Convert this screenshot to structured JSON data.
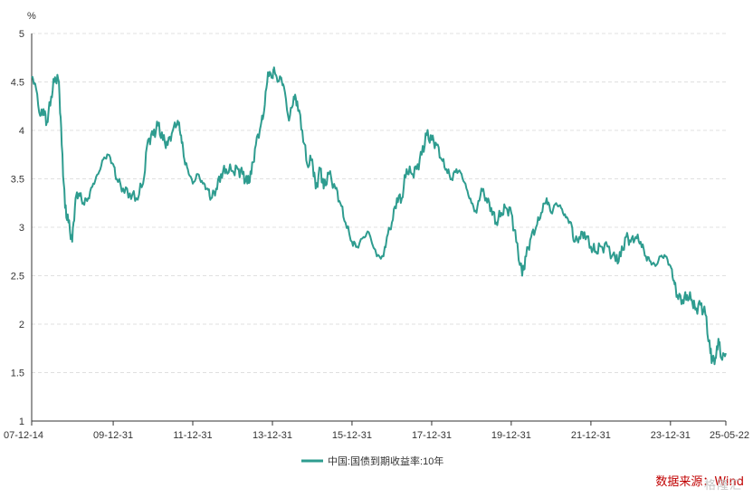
{
  "chart_data": {
    "type": "line",
    "title": "",
    "ylabel": "%",
    "ylim": [
      1,
      5
    ],
    "yticks": [
      "1",
      "1.5",
      "2",
      "2.5",
      "3",
      "3.5",
      "4",
      "4.5",
      "5"
    ],
    "xticks": [
      "07-12-14",
      "09-12-31",
      "11-12-31",
      "13-12-31",
      "15-12-31",
      "17-12-31",
      "19-12-31",
      "21-12-31",
      "23-12-31",
      "25-05-22"
    ],
    "grid": true,
    "legend_position": "bottom-center",
    "series": [
      {
        "name": "中国:国债到期收益率:10年",
        "color": "#2e9c8f",
        "points": [
          [
            "2007-12-14",
            4.55
          ],
          [
            "2008-01-15",
            4.48
          ],
          [
            "2008-03-01",
            4.15
          ],
          [
            "2008-04-01",
            4.22
          ],
          [
            "2008-05-01",
            4.08
          ],
          [
            "2008-06-10",
            4.35
          ],
          [
            "2008-07-15",
            4.55
          ],
          [
            "2008-08-20",
            4.5
          ],
          [
            "2008-09-15",
            3.85
          ],
          [
            "2008-10-15",
            3.2
          ],
          [
            "2008-11-15",
            3.05
          ],
          [
            "2008-12-20",
            2.85
          ],
          [
            "2009-01-20",
            3.3
          ],
          [
            "2009-02-20",
            3.35
          ],
          [
            "2009-04-01",
            3.25
          ],
          [
            "2009-05-15",
            3.3
          ],
          [
            "2009-07-01",
            3.45
          ],
          [
            "2009-08-15",
            3.55
          ],
          [
            "2009-10-01",
            3.7
          ],
          [
            "2009-11-15",
            3.75
          ],
          [
            "2009-12-31",
            3.65
          ],
          [
            "2010-02-01",
            3.5
          ],
          [
            "2010-04-01",
            3.4
          ],
          [
            "2010-06-01",
            3.35
          ],
          [
            "2010-08-01",
            3.3
          ],
          [
            "2010-10-01",
            3.45
          ],
          [
            "2010-11-15",
            3.9
          ],
          [
            "2011-01-01",
            3.95
          ],
          [
            "2011-02-15",
            4.05
          ],
          [
            "2011-04-01",
            3.9
          ],
          [
            "2011-05-15",
            3.85
          ],
          [
            "2011-07-01",
            4.0
          ],
          [
            "2011-08-15",
            4.1
          ],
          [
            "2011-09-15",
            3.95
          ],
          [
            "2011-10-15",
            3.7
          ],
          [
            "2011-11-15",
            3.6
          ],
          [
            "2011-12-31",
            3.45
          ],
          [
            "2012-02-15",
            3.55
          ],
          [
            "2012-04-01",
            3.45
          ],
          [
            "2012-05-15",
            3.4
          ],
          [
            "2012-06-15",
            3.3
          ],
          [
            "2012-08-01",
            3.4
          ],
          [
            "2012-09-15",
            3.55
          ],
          [
            "2012-11-01",
            3.6
          ],
          [
            "2012-12-31",
            3.58
          ],
          [
            "2013-02-15",
            3.6
          ],
          [
            "2013-04-01",
            3.55
          ],
          [
            "2013-05-15",
            3.45
          ],
          [
            "2013-06-20",
            3.55
          ],
          [
            "2013-08-01",
            3.85
          ],
          [
            "2013-09-15",
            4.05
          ],
          [
            "2013-10-15",
            4.2
          ],
          [
            "2013-11-20",
            4.6
          ],
          [
            "2013-12-31",
            4.55
          ],
          [
            "2014-01-15",
            4.65
          ],
          [
            "2014-02-15",
            4.5
          ],
          [
            "2014-03-15",
            4.55
          ],
          [
            "2014-04-15",
            4.45
          ],
          [
            "2014-06-01",
            4.1
          ],
          [
            "2014-07-15",
            4.35
          ],
          [
            "2014-08-15",
            4.3
          ],
          [
            "2014-10-01",
            4.0
          ],
          [
            "2014-11-15",
            3.65
          ],
          [
            "2014-12-31",
            3.7
          ],
          [
            "2015-02-01",
            3.4
          ],
          [
            "2015-03-15",
            3.6
          ],
          [
            "2015-04-15",
            3.4
          ],
          [
            "2015-06-01",
            3.55
          ],
          [
            "2015-08-01",
            3.4
          ],
          [
            "2015-09-15",
            3.25
          ],
          [
            "2015-11-01",
            3.05
          ],
          [
            "2015-12-31",
            2.85
          ],
          [
            "2016-02-15",
            2.8
          ],
          [
            "2016-04-15",
            2.9
          ],
          [
            "2016-06-01",
            2.95
          ],
          [
            "2016-08-15",
            2.7
          ],
          [
            "2016-10-15",
            2.7
          ],
          [
            "2016-11-15",
            2.9
          ],
          [
            "2016-12-31",
            3.05
          ],
          [
            "2017-02-15",
            3.3
          ],
          [
            "2017-04-01",
            3.3
          ],
          [
            "2017-05-15",
            3.6
          ],
          [
            "2017-07-01",
            3.55
          ],
          [
            "2017-08-15",
            3.6
          ],
          [
            "2017-10-01",
            3.75
          ],
          [
            "2017-11-15",
            3.95
          ],
          [
            "2017-12-31",
            3.9
          ],
          [
            "2018-02-15",
            3.85
          ],
          [
            "2018-04-01",
            3.7
          ],
          [
            "2018-05-15",
            3.6
          ],
          [
            "2018-07-01",
            3.5
          ],
          [
            "2018-08-15",
            3.6
          ],
          [
            "2018-10-01",
            3.55
          ],
          [
            "2018-11-15",
            3.4
          ],
          [
            "2018-12-31",
            3.25
          ],
          [
            "2019-02-15",
            3.15
          ],
          [
            "2019-04-01",
            3.4
          ],
          [
            "2019-05-15",
            3.3
          ],
          [
            "2019-07-01",
            3.2
          ],
          [
            "2019-08-15",
            3.05
          ],
          [
            "2019-10-01",
            3.15
          ],
          [
            "2019-11-15",
            3.2
          ],
          [
            "2019-12-31",
            3.15
          ],
          [
            "2020-02-15",
            2.85
          ],
          [
            "2020-04-10",
            2.5
          ],
          [
            "2020-05-15",
            2.7
          ],
          [
            "2020-07-01",
            2.9
          ],
          [
            "2020-08-15",
            3.0
          ],
          [
            "2020-10-01",
            3.15
          ],
          [
            "2020-11-20",
            3.3
          ],
          [
            "2020-12-31",
            3.15
          ],
          [
            "2021-02-15",
            3.25
          ],
          [
            "2021-04-01",
            3.2
          ],
          [
            "2021-05-15",
            3.1
          ],
          [
            "2021-07-01",
            3.05
          ],
          [
            "2021-07-30",
            2.85
          ],
          [
            "2021-09-15",
            2.9
          ],
          [
            "2021-11-01",
            2.95
          ],
          [
            "2021-12-31",
            2.8
          ],
          [
            "2022-02-15",
            2.75
          ],
          [
            "2022-04-01",
            2.8
          ],
          [
            "2022-06-01",
            2.8
          ],
          [
            "2022-08-15",
            2.65
          ],
          [
            "2022-10-01",
            2.7
          ],
          [
            "2022-11-20",
            2.9
          ],
          [
            "2022-12-31",
            2.85
          ],
          [
            "2023-02-15",
            2.9
          ],
          [
            "2023-04-01",
            2.85
          ],
          [
            "2023-05-20",
            2.7
          ],
          [
            "2023-07-01",
            2.65
          ],
          [
            "2023-08-15",
            2.6
          ],
          [
            "2023-10-01",
            2.7
          ],
          [
            "2023-11-15",
            2.7
          ],
          [
            "2023-12-31",
            2.6
          ],
          [
            "2024-02-01",
            2.45
          ],
          [
            "2024-03-01",
            2.3
          ],
          [
            "2024-04-20",
            2.25
          ],
          [
            "2024-06-01",
            2.3
          ],
          [
            "2024-07-15",
            2.25
          ],
          [
            "2024-08-15",
            2.15
          ],
          [
            "2024-10-01",
            2.2
          ],
          [
            "2024-11-15",
            2.1
          ],
          [
            "2024-12-31",
            1.7
          ],
          [
            "2025-01-20",
            1.62
          ],
          [
            "2025-02-20",
            1.65
          ],
          [
            "2025-03-15",
            1.85
          ],
          [
            "2025-04-10",
            1.65
          ],
          [
            "2025-05-22",
            1.7
          ]
        ]
      }
    ]
  },
  "footer": {
    "source": "数据来源：Wind",
    "watermark": "格隆汇"
  }
}
